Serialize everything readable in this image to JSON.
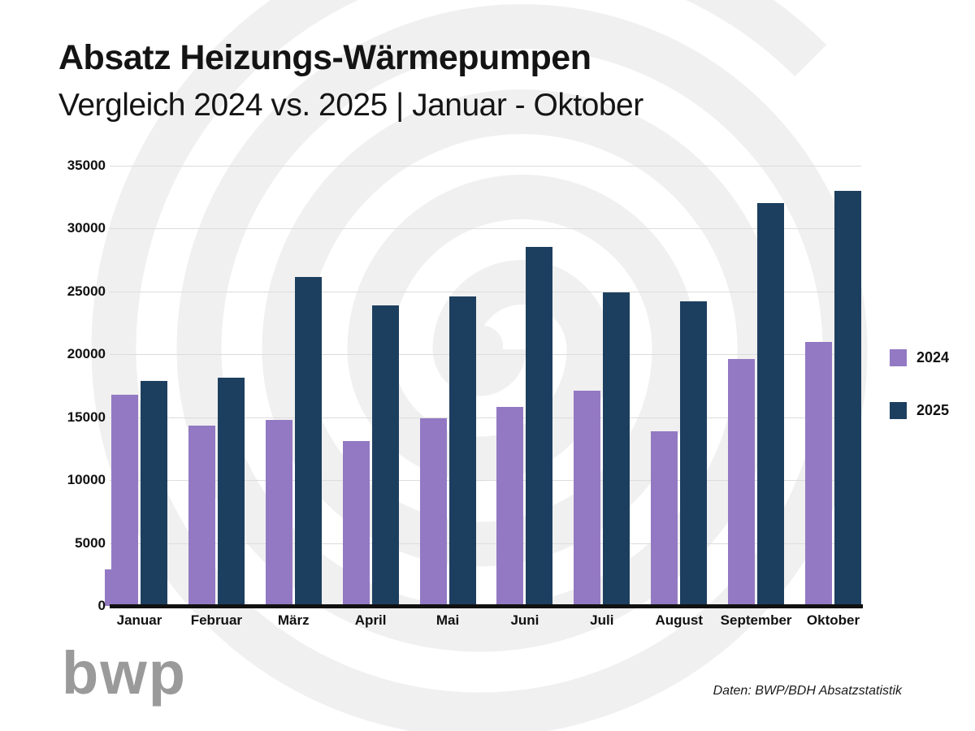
{
  "header": {
    "title": "Absatz Heizungs-Wärmepumpen",
    "subtitle": "Vergleich 2024 vs. 2025 | Januar - Oktober"
  },
  "chart_data": {
    "type": "bar",
    "title": "Absatz Heizungs-Wärmepumpen",
    "subtitle": "Vergleich 2024 vs. 2025 | Januar - Oktober",
    "categories": [
      "Januar",
      "Februar",
      "März",
      "April",
      "Mai",
      "Juni",
      "Juli",
      "August",
      "September",
      "Oktober"
    ],
    "series": [
      {
        "name": "2024",
        "color": "#9379c3",
        "values": [
          16800,
          14300,
          14800,
          13100,
          14900,
          15800,
          17100,
          13900,
          19600,
          21000
        ]
      },
      {
        "name": "2025",
        "color": "#1d3f5f",
        "values": [
          17900,
          18100,
          26100,
          23900,
          24600,
          28500,
          24900,
          24200,
          32000,
          33000
        ]
      }
    ],
    "ylim": [
      0,
      35000
    ],
    "y_ticks": [
      0,
      5000,
      10000,
      15000,
      20000,
      25000,
      30000,
      35000
    ],
    "xlabel": "",
    "ylabel": "",
    "grid": "horizontal",
    "legend_position": "right",
    "clipped_partial_bar": {
      "series": "2024",
      "position": "left-edge-of-januar",
      "approx_value": 2900
    }
  },
  "footer": {
    "logo_text": "bwp",
    "source": "Daten: BWP/BDH Absatzstatistik"
  },
  "colors": {
    "series_2024": "#9379c3",
    "series_2025": "#1d3f5f",
    "gridline": "#dcdcdc",
    "axis": "#111111",
    "watermark": "#f0f0f0",
    "text": "#141414",
    "logo": "#9a9a9a"
  }
}
